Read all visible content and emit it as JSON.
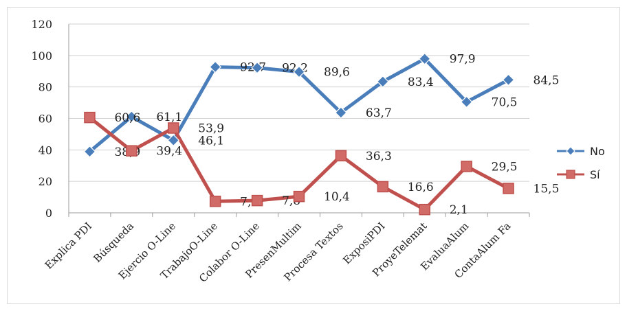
{
  "chart_data": {
    "type": "line",
    "categories": [
      "Explica PDI",
      "Búsqueda",
      "Ejercio O-Line",
      "TrabajoO-Line",
      "Colabor O-Line",
      "PresenMultim",
      "Procesa Textos",
      "ExposiPDI",
      "ProyeTelemat",
      "EvaluaAlum",
      "ContaAlum Fa"
    ],
    "series": [
      {
        "name": "No",
        "color": "#4a7ebb",
        "marker": "diamond",
        "values": [
          38.9,
          61.1,
          46.1,
          92.7,
          92.2,
          89.6,
          63.7,
          83.4,
          97.9,
          70.5,
          84.5
        ],
        "labels": [
          "38,9",
          "61,1",
          "46,1",
          "92,7",
          "92,2",
          "89,6",
          "63,7",
          "83,4",
          "97,9",
          "70,5",
          "84,5"
        ]
      },
      {
        "name": "Sí",
        "color": "#c0504d",
        "marker": "square",
        "values": [
          60.6,
          39.4,
          53.9,
          7.3,
          7.8,
          10.4,
          36.3,
          16.6,
          2.1,
          29.5,
          15.5
        ],
        "labels": [
          "60,6",
          "39,4",
          "53,9",
          "7,3",
          "7,8",
          "10,4",
          "36,3",
          "16,6",
          "2,1",
          "29,5",
          "15,5"
        ]
      }
    ],
    "yticks": [
      "0",
      "20",
      "40",
      "60",
      "80",
      "100",
      "120"
    ],
    "ylim": [
      0,
      120
    ],
    "grid": "horizontal",
    "legend": "right"
  }
}
